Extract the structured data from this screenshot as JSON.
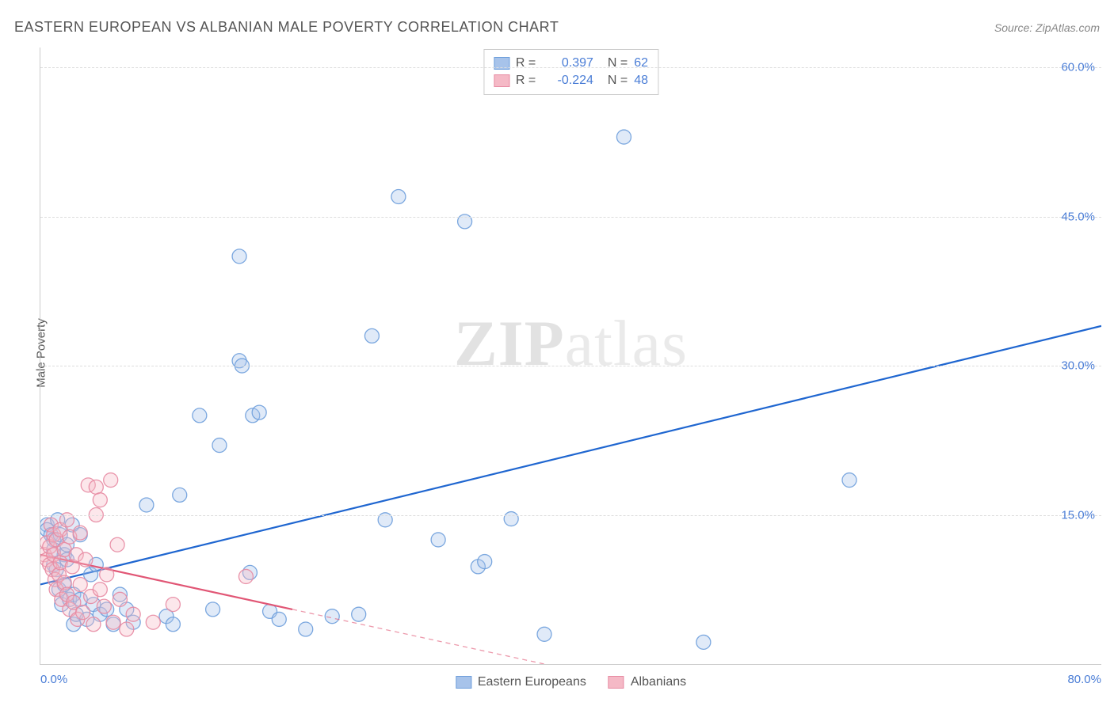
{
  "header": {
    "title": "EASTERN EUROPEAN VS ALBANIAN MALE POVERTY CORRELATION CHART",
    "source_label": "Source: ",
    "source_name": "ZipAtlas.com"
  },
  "watermark": {
    "part1": "ZIP",
    "part2": "atlas"
  },
  "chart": {
    "type": "scatter",
    "ylabel": "Male Poverty",
    "xlim": [
      0,
      80
    ],
    "ylim": [
      0,
      62
    ],
    "xticks": [
      {
        "value": 0,
        "label": "0.0%",
        "align": "left"
      },
      {
        "value": 80,
        "label": "80.0%",
        "align": "right"
      }
    ],
    "yticks": [
      {
        "value": 15,
        "label": "15.0%"
      },
      {
        "value": 30,
        "label": "30.0%"
      },
      {
        "value": 45,
        "label": "45.0%"
      },
      {
        "value": 60,
        "label": "60.0%"
      }
    ],
    "grid_color": "#dddddd",
    "background_color": "#ffffff",
    "marker_radius": 9,
    "marker_fill_opacity": 0.35,
    "marker_stroke_opacity": 0.9,
    "regression_line_width": 2.2,
    "axis_label_color": "#4a7dd6",
    "series": [
      {
        "name": "Eastern Europeans",
        "color_fill": "#a7c3ea",
        "color_stroke": "#6e9edb",
        "line_color": "#1f66d0",
        "R": "0.397",
        "N": "62",
        "regression": {
          "x1": 0,
          "y1": 8.0,
          "x2": 80,
          "y2": 34.0,
          "dashed_from": 80
        },
        "points": [
          [
            0.5,
            14
          ],
          [
            0.5,
            13.5
          ],
          [
            0.8,
            13
          ],
          [
            1,
            12.5
          ],
          [
            1,
            11.5
          ],
          [
            1,
            10
          ],
          [
            1.2,
            9.5
          ],
          [
            1.3,
            14.5
          ],
          [
            1.4,
            7.5
          ],
          [
            1.5,
            13
          ],
          [
            1.6,
            6
          ],
          [
            1.8,
            8
          ],
          [
            1.8,
            11
          ],
          [
            2,
            10.5
          ],
          [
            2,
            12
          ],
          [
            2.2,
            6.5
          ],
          [
            2.4,
            14
          ],
          [
            2.5,
            4
          ],
          [
            2.5,
            7
          ],
          [
            2.7,
            5
          ],
          [
            3,
            13
          ],
          [
            3,
            6.5
          ],
          [
            3.5,
            4.5
          ],
          [
            3.8,
            9
          ],
          [
            4,
            6
          ],
          [
            4.2,
            10
          ],
          [
            4.5,
            5
          ],
          [
            5,
            5.5
          ],
          [
            5.5,
            4
          ],
          [
            6,
            7
          ],
          [
            6.5,
            5.5
          ],
          [
            7,
            4.2
          ],
          [
            8,
            16
          ],
          [
            9.5,
            4.8
          ],
          [
            10,
            4
          ],
          [
            10.5,
            17
          ],
          [
            12,
            25
          ],
          [
            13,
            5.5
          ],
          [
            13.5,
            22
          ],
          [
            15,
            30.5
          ],
          [
            15,
            41
          ],
          [
            15.2,
            30
          ],
          [
            15.8,
            9.2
          ],
          [
            16,
            25
          ],
          [
            16.5,
            25.3
          ],
          [
            17.3,
            5.3
          ],
          [
            18,
            4.5
          ],
          [
            20,
            3.5
          ],
          [
            22,
            4.8
          ],
          [
            24,
            5
          ],
          [
            25,
            33
          ],
          [
            26,
            14.5
          ],
          [
            27,
            47
          ],
          [
            30,
            12.5
          ],
          [
            32,
            44.5
          ],
          [
            33,
            9.8
          ],
          [
            33.5,
            10.3
          ],
          [
            35.5,
            14.6
          ],
          [
            38,
            3
          ],
          [
            44,
            53
          ],
          [
            50,
            2.2
          ],
          [
            61,
            18.5
          ]
        ]
      },
      {
        "name": "Albanians",
        "color_fill": "#f5b9c6",
        "color_stroke": "#e78aa2",
        "line_color": "#e15675",
        "R": "-0.224",
        "N": "48",
        "regression": {
          "x1": 0,
          "y1": 11.0,
          "x2": 19,
          "y2": 5.5,
          "dashed_to_x": 38,
          "dashed_to_y": 0
        },
        "points": [
          [
            0.3,
            11
          ],
          [
            0.5,
            12.2
          ],
          [
            0.5,
            10.5
          ],
          [
            0.7,
            11.8
          ],
          [
            0.7,
            10
          ],
          [
            0.8,
            14
          ],
          [
            0.9,
            9.5
          ],
          [
            1,
            13
          ],
          [
            1,
            11
          ],
          [
            1.1,
            8.5
          ],
          [
            1.2,
            12.5
          ],
          [
            1.2,
            7.5
          ],
          [
            1.4,
            9
          ],
          [
            1.5,
            13.5
          ],
          [
            1.5,
            10.2
          ],
          [
            1.6,
            6.5
          ],
          [
            1.8,
            11.5
          ],
          [
            1.8,
            8.2
          ],
          [
            2,
            14.5
          ],
          [
            2,
            7
          ],
          [
            2.2,
            12.8
          ],
          [
            2.2,
            5.5
          ],
          [
            2.4,
            9.8
          ],
          [
            2.5,
            6.2
          ],
          [
            2.7,
            11
          ],
          [
            2.8,
            4.5
          ],
          [
            3,
            13.2
          ],
          [
            3,
            8
          ],
          [
            3.2,
            5.2
          ],
          [
            3.4,
            10.5
          ],
          [
            3.6,
            18
          ],
          [
            3.8,
            6.8
          ],
          [
            4,
            4
          ],
          [
            4.2,
            15
          ],
          [
            4.2,
            17.8
          ],
          [
            4.5,
            16.5
          ],
          [
            4.5,
            7.5
          ],
          [
            4.8,
            5.8
          ],
          [
            5,
            9
          ],
          [
            5.3,
            18.5
          ],
          [
            5.5,
            4.2
          ],
          [
            5.8,
            12
          ],
          [
            6,
            6.5
          ],
          [
            6.5,
            3.5
          ],
          [
            7,
            5
          ],
          [
            8.5,
            4.2
          ],
          [
            10,
            6
          ],
          [
            15.5,
            8.8
          ]
        ]
      }
    ],
    "legend_top": {
      "R_label": "R =",
      "N_label": "N ="
    },
    "legend_bottom": [
      {
        "label": "Eastern Europeans",
        "swatch_fill": "#a7c3ea",
        "swatch_stroke": "#6e9edb"
      },
      {
        "label": "Albanians",
        "swatch_fill": "#f5b9c6",
        "swatch_stroke": "#e78aa2"
      }
    ]
  }
}
